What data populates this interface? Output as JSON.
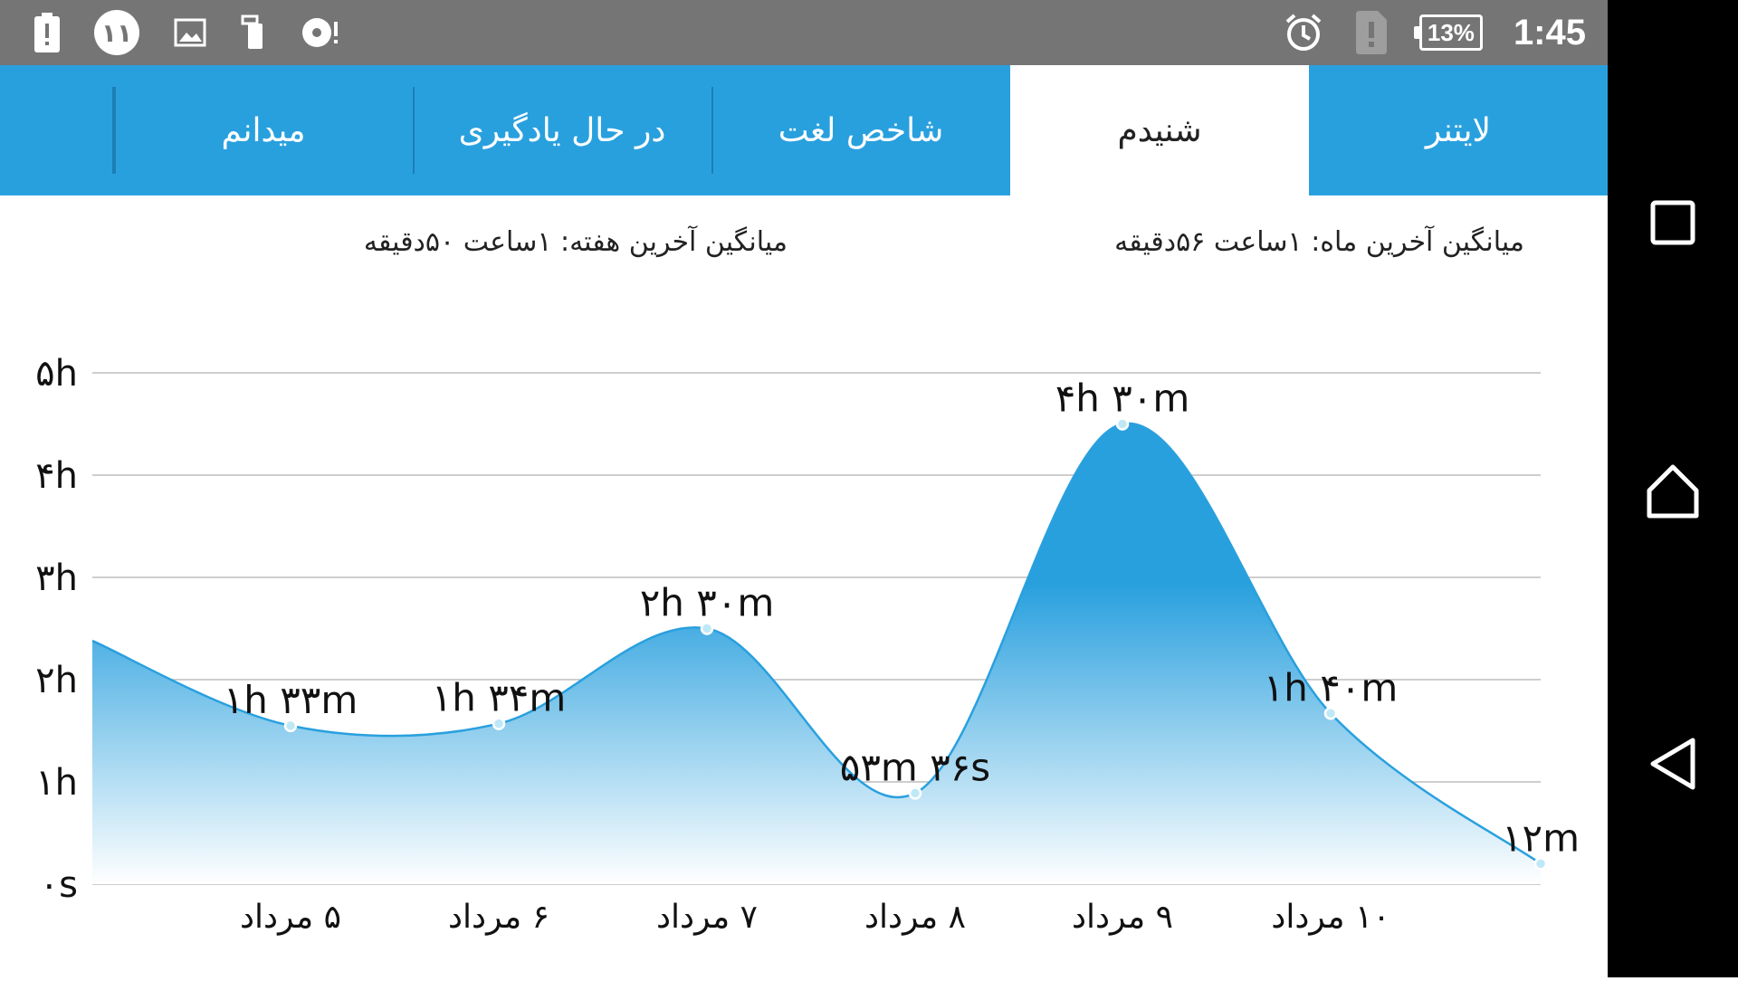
{
  "status_bar": {
    "notification_count": "۱۱",
    "battery_percent": "13%",
    "time": "1:45",
    "icons": [
      "battery-alert-icon",
      "notification-count-icon",
      "image-icon",
      "phone-sync-icon",
      "media-alert-icon",
      "alarm-icon",
      "sim-alert-icon"
    ]
  },
  "tabs": [
    {
      "label": "لایتنر",
      "active": false
    },
    {
      "label": "شنیدم",
      "active": true
    },
    {
      "label": "شاخص لغت",
      "active": false
    },
    {
      "label": "در حال یادگیری",
      "active": false
    },
    {
      "label": "میدانم",
      "active": false
    }
  ],
  "averages": {
    "last_month": "میانگین آخرین ماه: ۱ساعت  ۵۶دقیقه",
    "last_week": "میانگین آخرین هفته: ۱ساعت  ۵۰دقیقه"
  },
  "chart_data": {
    "type": "area",
    "y_ticks": [
      "۰s",
      "۱h",
      "۲h",
      "۳h",
      "۴h",
      "۵h"
    ],
    "ylim": [
      0,
      5
    ],
    "x_tick_labels": [
      "۵ مرداد",
      "۶ مرداد",
      "۷ مرداد",
      "۸ مرداد",
      "۹ مرداد",
      "۱۰ مرداد"
    ],
    "points": [
      {
        "x": 0,
        "y": 2.38,
        "label": ""
      },
      {
        "x": 1,
        "y": 1.55,
        "label": "۱h ۳۳m"
      },
      {
        "x": 2,
        "y": 1.57,
        "label": "۱h ۳۴m"
      },
      {
        "x": 3,
        "y": 2.5,
        "label": "۲h ۳۰m"
      },
      {
        "x": 4,
        "y": 0.89,
        "label": "۵۳m ۳۶s"
      },
      {
        "x": 5,
        "y": 4.5,
        "label": "۴h ۳۰m"
      },
      {
        "x": 6,
        "y": 1.67,
        "label": "۱h ۴۰m"
      },
      {
        "x": 7,
        "y": 0.2,
        "label": "۱۲m"
      }
    ],
    "tick_for_point": [
      null,
      0,
      1,
      2,
      3,
      4,
      5,
      null
    ],
    "grid": true,
    "colors": {
      "fill_top": "#29a0de",
      "fill_bottom": "#ffffff",
      "line": "#29a0de",
      "marker_fill": "#bfe8f7",
      "grid": "#bdbdbd",
      "text": "#111111"
    }
  },
  "nav_bar": {
    "icons": [
      "recents-icon",
      "home-icon",
      "back-icon"
    ]
  }
}
